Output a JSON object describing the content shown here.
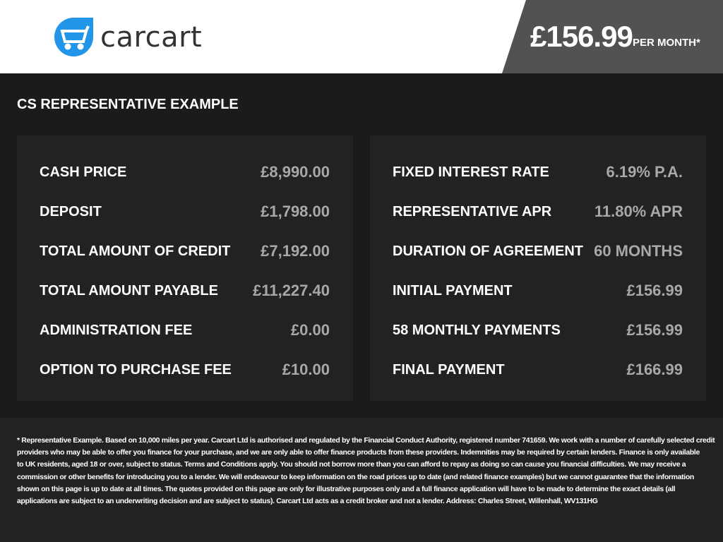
{
  "header": {
    "logo_text": "carcart",
    "price": "£156.99",
    "price_suffix": "PER MONTH*",
    "brand_color": "#2196e8"
  },
  "section_title": "CS REPRESENTATIVE EXAMPLE",
  "left_panel": [
    {
      "label": "CASH PRICE",
      "value": "£8,990.00"
    },
    {
      "label": "DEPOSIT",
      "value": "£1,798.00"
    },
    {
      "label": "TOTAL AMOUNT OF CREDIT",
      "value": "£7,192.00"
    },
    {
      "label": "TOTAL AMOUNT PAYABLE",
      "value": "£11,227.40"
    },
    {
      "label": "ADMINISTRATION FEE",
      "value": "£0.00"
    },
    {
      "label": "OPTION TO PURCHASE FEE",
      "value": "£10.00"
    }
  ],
  "right_panel": [
    {
      "label": "FIXED INTEREST RATE",
      "value": "6.19% P.A."
    },
    {
      "label": "REPRESENTATIVE APR",
      "value": "11.80% APR"
    },
    {
      "label": "DURATION OF AGREEMENT",
      "value": "60 MONTHS"
    },
    {
      "label": "INITIAL PAYMENT",
      "value": "£156.99"
    },
    {
      "label": "58 MONTHLY PAYMENTS",
      "value": "£156.99"
    },
    {
      "label": "FINAL PAYMENT",
      "value": "£166.99"
    }
  ],
  "disclaimer_lines": [
    "* Representative Example. Based on 10,000 miles per year. Carcart Ltd is authorised and regulated by the Financial Conduct Authority, registered number 741659. We work with a number of carefully selected credit",
    "providers who may be able to offer you finance for your purchase, and we are only able to offer finance products from these providers. Indemnities may be required by certain lenders. Finance is only available",
    "to UK residents, aged 18 or over, subject to status. Terms and Conditions apply. You should not borrow more than you can afford to repay as doing so can cause you financial difficulties. We may receive a",
    "commission or other benefits for introducing you to a lender. We will endeavour to keep information on the road prices up to date (and related finance examples) but we cannot guarantee that the information",
    "shown on this page is up to date at all times. The quotes provided on this page are only for illustrative purposes only and a full finance application will have to be made to determine the exact details (all",
    "applications are subject to an underwriting decision and are subject to status). Carcart Ltd acts as a credit broker and not a lender. Address: Charles Street, Willenhall, WV131HG"
  ]
}
